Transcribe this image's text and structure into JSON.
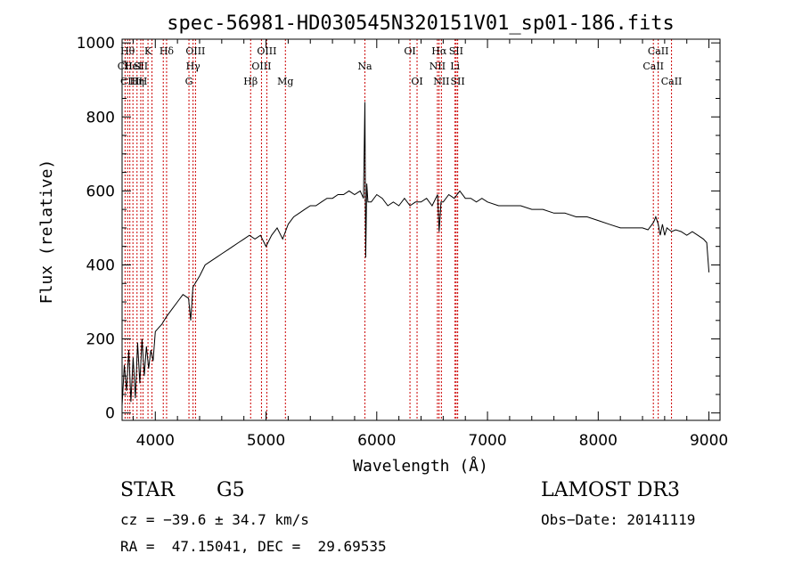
{
  "chart_data": {
    "type": "line",
    "title": "spec-56981-HD030545N320151V01_sp01-186.fits",
    "xlabel": "Wavelength (Å)",
    "ylabel": "Flux (relative)",
    "xlim": [
      3700,
      9100
    ],
    "ylim": [
      -20,
      1010
    ],
    "x_ticks": [
      4000,
      5000,
      6000,
      7000,
      8000,
      9000
    ],
    "y_ticks": [
      0,
      200,
      400,
      600,
      800,
      1000
    ],
    "grid": false,
    "line_color": "#000000",
    "marker_color": "#cc0000",
    "spectrum": {
      "x": [
        3700,
        3720,
        3740,
        3760,
        3780,
        3800,
        3820,
        3840,
        3860,
        3880,
        3900,
        3920,
        3940,
        3960,
        3980,
        4000,
        4030,
        4060,
        4100,
        4150,
        4200,
        4250,
        4300,
        4320,
        4340,
        4360,
        4400,
        4450,
        4500,
        4550,
        4600,
        4650,
        4700,
        4750,
        4800,
        4850,
        4900,
        4950,
        5000,
        5050,
        5100,
        5150,
        5200,
        5250,
        5300,
        5350,
        5400,
        5450,
        5500,
        5550,
        5600,
        5650,
        5700,
        5750,
        5800,
        5850,
        5880,
        5893,
        5900,
        5910,
        5920,
        5950,
        6000,
        6050,
        6100,
        6150,
        6200,
        6250,
        6300,
        6350,
        6400,
        6450,
        6500,
        6550,
        6563,
        6580,
        6600,
        6650,
        6700,
        6750,
        6800,
        6850,
        6900,
        6950,
        7000,
        7100,
        7200,
        7300,
        7400,
        7500,
        7600,
        7700,
        7800,
        7900,
        8000,
        8100,
        8200,
        8300,
        8400,
        8450,
        8500,
        8520,
        8542,
        8560,
        8580,
        8600,
        8620,
        8662,
        8700,
        8750,
        8800,
        8850,
        8900,
        8950,
        8980,
        9000
      ],
      "y": [
        20,
        130,
        60,
        170,
        30,
        150,
        40,
        190,
        80,
        200,
        100,
        180,
        120,
        170,
        140,
        220,
        230,
        240,
        260,
        280,
        300,
        320,
        310,
        250,
        340,
        350,
        370,
        400,
        410,
        420,
        430,
        440,
        450,
        460,
        470,
        480,
        470,
        480,
        450,
        480,
        500,
        470,
        510,
        530,
        540,
        550,
        560,
        560,
        570,
        580,
        580,
        590,
        590,
        600,
        590,
        600,
        580,
        840,
        420,
        620,
        570,
        570,
        590,
        580,
        560,
        570,
        560,
        580,
        560,
        570,
        570,
        580,
        560,
        590,
        490,
        570,
        570,
        590,
        580,
        600,
        580,
        580,
        570,
        580,
        570,
        560,
        560,
        560,
        550,
        550,
        540,
        540,
        530,
        530,
        520,
        510,
        500,
        500,
        500,
        495,
        515,
        530,
        510,
        480,
        510,
        480,
        500,
        490,
        495,
        490,
        480,
        490,
        480,
        470,
        460,
        380
      ]
    },
    "line_markers": [
      {
        "wl": 3727,
        "row": 1,
        "label": "CII"
      },
      {
        "wl": 3750,
        "row": 0,
        "label": "Hθ"
      },
      {
        "wl": 3770,
        "row": 2,
        "label": "CIII"
      },
      {
        "wl": 3798,
        "row": 1,
        "label": "HeI"
      },
      {
        "wl": 3835,
        "row": 2,
        "label": "Hη"
      },
      {
        "wl": 3869,
        "row": 1,
        "label": "SII"
      },
      {
        "wl": 3889,
        "row": 2,
        "label": "H"
      },
      {
        "wl": 3934,
        "row": 0,
        "label": "K"
      },
      {
        "wl": 3970,
        "row": 1,
        "label": ""
      },
      {
        "wl": 4072,
        "row": 1,
        "label": ""
      },
      {
        "wl": 4102,
        "row": 0,
        "label": "Hδ"
      },
      {
        "wl": 4304,
        "row": 2,
        "label": "G"
      },
      {
        "wl": 4341,
        "row": 1,
        "label": "Hγ"
      },
      {
        "wl": 4363,
        "row": 0,
        "label": "OIII"
      },
      {
        "wl": 4861,
        "row": 2,
        "label": "Hβ"
      },
      {
        "wl": 4959,
        "row": 1,
        "label": "OIII"
      },
      {
        "wl": 5007,
        "row": 0,
        "label": "OIII"
      },
      {
        "wl": 5175,
        "row": 2,
        "label": "Mg"
      },
      {
        "wl": 5893,
        "row": 1,
        "label": "Na"
      },
      {
        "wl": 6300,
        "row": 0,
        "label": "OI"
      },
      {
        "wl": 6364,
        "row": 2,
        "label": "OI"
      },
      {
        "wl": 6548,
        "row": 1,
        "label": "NII"
      },
      {
        "wl": 6563,
        "row": 0,
        "label": "Hα"
      },
      {
        "wl": 6584,
        "row": 2,
        "label": "NII"
      },
      {
        "wl": 6707,
        "row": 1,
        "label": "Li"
      },
      {
        "wl": 6717,
        "row": 0,
        "label": "SII"
      },
      {
        "wl": 6731,
        "row": 2,
        "label": "SII"
      },
      {
        "wl": 8498,
        "row": 1,
        "label": "CaII"
      },
      {
        "wl": 8542,
        "row": 0,
        "label": "CaII"
      },
      {
        "wl": 8662,
        "row": 2,
        "label": "CaII"
      }
    ]
  },
  "info": {
    "object_class": "STAR",
    "subclass": "G5",
    "survey": "LAMOST DR3",
    "redshift": "cz = −39.6 ± 34.7 km/s",
    "obs_date": "Obs−Date: 20141119",
    "coords": "RA =  47.15041, DEC =  29.69535"
  }
}
